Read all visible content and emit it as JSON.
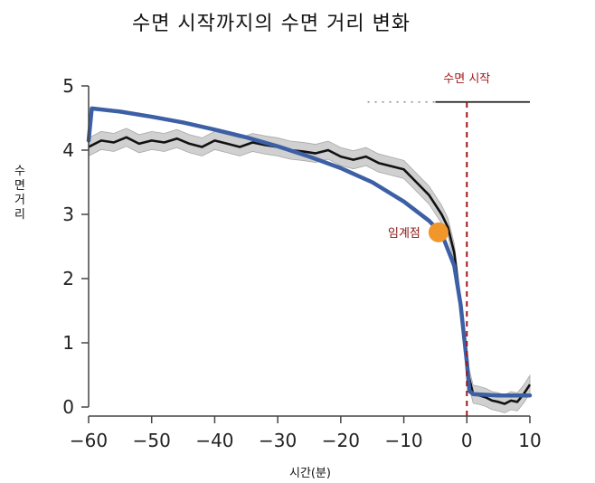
{
  "chart_data": {
    "type": "line",
    "title": "수면 시작까지의 수면 거리 변화",
    "xlabel": "시간(분)",
    "ylabel": "수면거리",
    "xlim": [
      -60,
      10
    ],
    "ylim": [
      0,
      5
    ],
    "xticks": [
      -60,
      -50,
      -40,
      -30,
      -20,
      -10,
      0,
      10
    ],
    "yticks": [
      0,
      1,
      2,
      3,
      4,
      5
    ],
    "grid": false,
    "colors": {
      "fit": "#3c5fa6",
      "data": "#111111",
      "band": "#c8c8c8",
      "onset": "#a01818",
      "critical": "#f0962a"
    },
    "series": [
      {
        "values_x": [
          -60,
          -58,
          -56,
          -54,
          -52,
          -50,
          -48,
          -46,
          -44,
          -42,
          -40,
          -38,
          -36,
          -34,
          -32,
          -30,
          -28,
          -26,
          -24,
          -22,
          -20,
          -18,
          -16,
          -14,
          -12,
          -10,
          -8,
          -6,
          -4,
          -3,
          -2,
          -1,
          0,
          1,
          2,
          3,
          4,
          5,
          6,
          7,
          8,
          9,
          10
        ],
        "values_y": [
          4.05,
          4.15,
          4.12,
          4.2,
          4.1,
          4.15,
          4.12,
          4.18,
          4.1,
          4.05,
          4.15,
          4.1,
          4.05,
          4.12,
          4.08,
          4.05,
          4.0,
          3.98,
          3.95,
          4.0,
          3.9,
          3.85,
          3.9,
          3.8,
          3.75,
          3.7,
          3.5,
          3.3,
          3.0,
          2.8,
          2.4,
          1.6,
          0.6,
          0.2,
          0.18,
          0.15,
          0.1,
          0.08,
          0.05,
          0.1,
          0.08,
          0.2,
          0.35
        ]
      },
      {
        "values_x": [
          -60,
          -59.5,
          -55,
          -50,
          -45,
          -40,
          -35,
          -30,
          -25,
          -20,
          -15,
          -10,
          -8,
          -6,
          -4,
          -2,
          -1,
          0,
          0.4,
          1,
          5,
          10
        ],
        "values_y": [
          4.15,
          4.65,
          4.6,
          4.52,
          4.43,
          4.32,
          4.2,
          4.06,
          3.9,
          3.72,
          3.5,
          3.2,
          3.05,
          2.9,
          2.7,
          2.2,
          1.6,
          0.7,
          0.25,
          0.2,
          0.18,
          0.18
        ]
      }
    ],
    "annotations": [
      {
        "text": "수면 시작",
        "x": 0
      },
      {
        "text": "임계점",
        "x": -4.5,
        "y": 2.72
      }
    ],
    "reference_line": {
      "x": 0,
      "style": "dashed"
    },
    "top_bar": {
      "from": -10,
      "to": 10,
      "y": 4.75
    }
  }
}
